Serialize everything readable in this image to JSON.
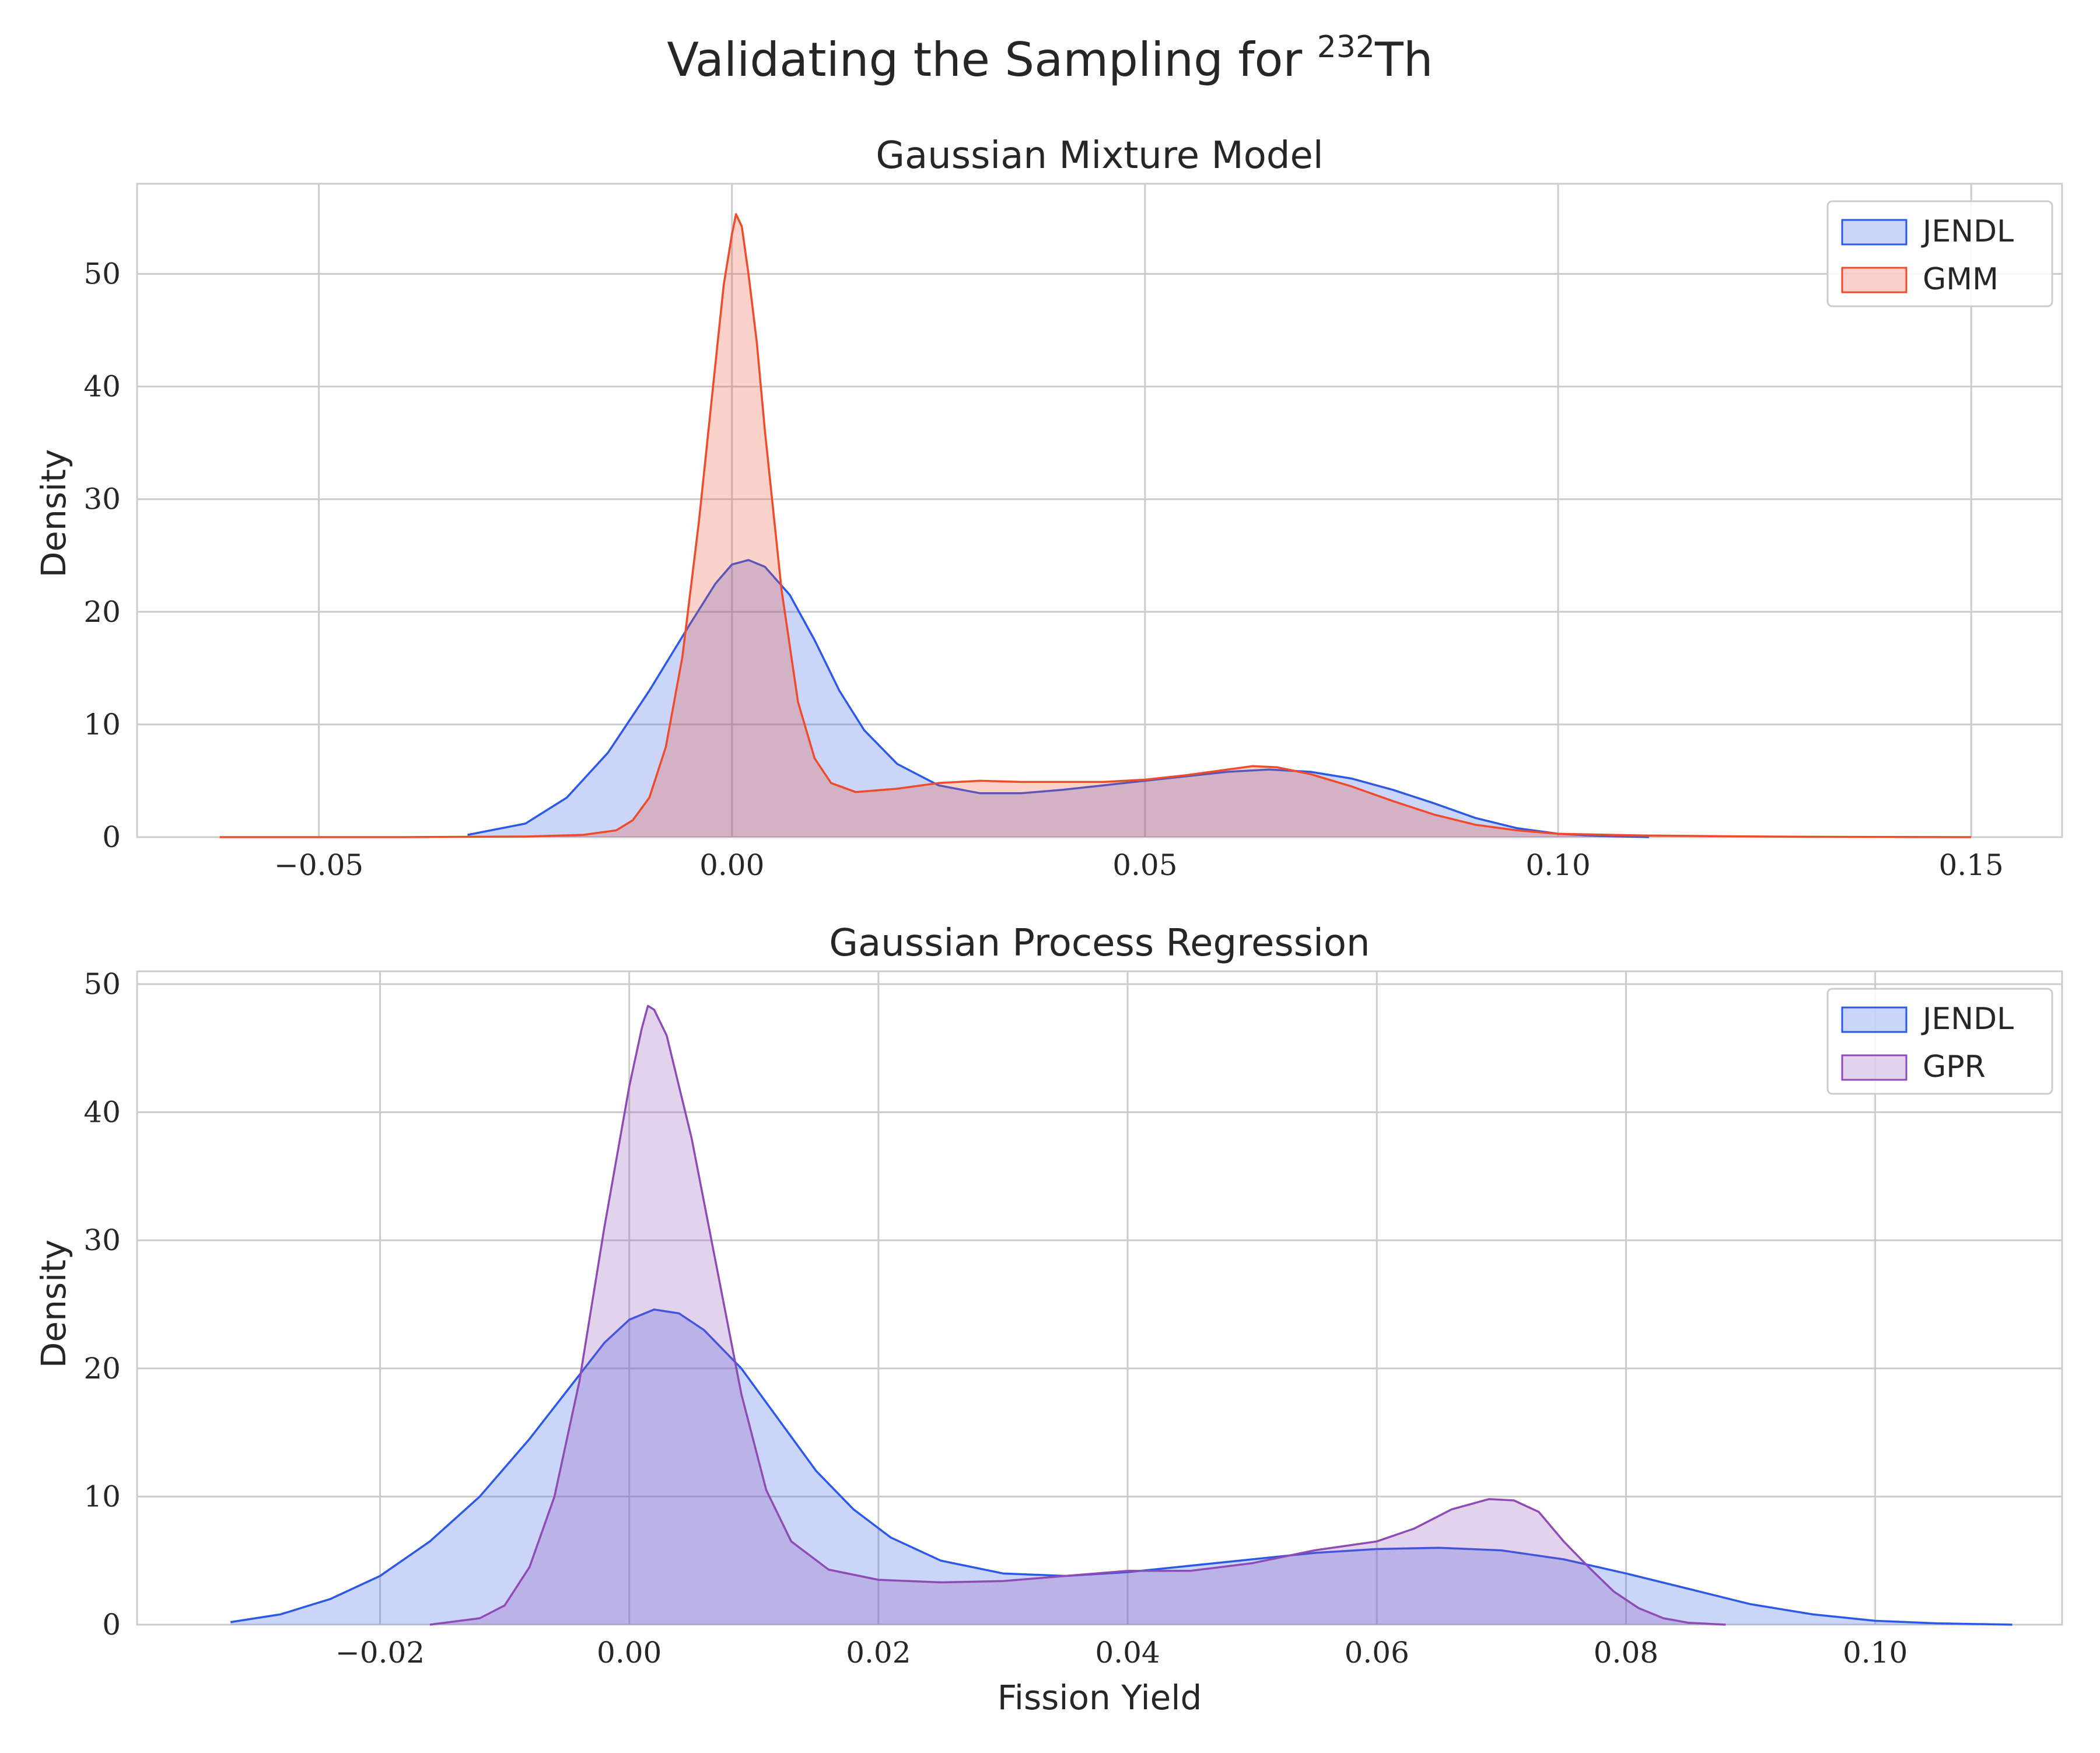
{
  "figure": {
    "title": "Validating the Sampling for ",
    "title_superscript": "232",
    "title_suffix": "Th"
  },
  "chart_data": [
    {
      "type": "area",
      "chart_kind": "kde density",
      "title": "Gaussian Mixture Model",
      "xlabel": "",
      "ylabel": "Density",
      "xlim": [
        -0.072,
        0.161
      ],
      "ylim": [
        0,
        58
      ],
      "xticks": [
        -0.05,
        0.0,
        0.05,
        0.1,
        0.15
      ],
      "xtick_labels": [
        "−0.05",
        "0.00",
        "0.05",
        "0.10",
        "0.15"
      ],
      "yticks": [
        0,
        10,
        20,
        30,
        40,
        50
      ],
      "ytick_labels": [
        "0",
        "10",
        "20",
        "30",
        "40",
        "50"
      ],
      "grid": true,
      "legend_position": "top-right",
      "series": [
        {
          "name": "JENDL",
          "color": "#2a58e8",
          "fill": "#c8d4fa",
          "points": [
            [
              -0.032,
              0.2
            ],
            [
              -0.025,
              1.2
            ],
            [
              -0.02,
              3.5
            ],
            [
              -0.015,
              7.5
            ],
            [
              -0.01,
              13.0
            ],
            [
              -0.005,
              19.0
            ],
            [
              -0.002,
              22.5
            ],
            [
              0.0,
              24.2
            ],
            [
              0.002,
              24.6
            ],
            [
              0.004,
              24.0
            ],
            [
              0.007,
              21.5
            ],
            [
              0.01,
              17.5
            ],
            [
              0.013,
              13.0
            ],
            [
              0.016,
              9.5
            ],
            [
              0.02,
              6.5
            ],
            [
              0.025,
              4.6
            ],
            [
              0.03,
              3.9
            ],
            [
              0.035,
              3.9
            ],
            [
              0.04,
              4.2
            ],
            [
              0.045,
              4.6
            ],
            [
              0.05,
              5.0
            ],
            [
              0.055,
              5.4
            ],
            [
              0.06,
              5.8
            ],
            [
              0.065,
              6.0
            ],
            [
              0.07,
              5.8
            ],
            [
              0.075,
              5.2
            ],
            [
              0.08,
              4.2
            ],
            [
              0.085,
              3.0
            ],
            [
              0.09,
              1.7
            ],
            [
              0.095,
              0.8
            ],
            [
              0.1,
              0.3
            ],
            [
              0.105,
              0.1
            ],
            [
              0.111,
              0.0
            ]
          ]
        },
        {
          "name": "GMM",
          "color": "#f04a2a",
          "fill": "#fac9bd",
          "points": [
            [
              -0.062,
              0.0
            ],
            [
              -0.04,
              0.0
            ],
            [
              -0.025,
              0.05
            ],
            [
              -0.018,
              0.2
            ],
            [
              -0.014,
              0.6
            ],
            [
              -0.012,
              1.5
            ],
            [
              -0.01,
              3.5
            ],
            [
              -0.008,
              8.0
            ],
            [
              -0.006,
              16.0
            ],
            [
              -0.004,
              28.0
            ],
            [
              -0.002,
              42.0
            ],
            [
              -0.001,
              49.0
            ],
            [
              0.0,
              53.5
            ],
            [
              0.0005,
              55.3
            ],
            [
              0.0012,
              54.2
            ],
            [
              0.002,
              50.0
            ],
            [
              0.003,
              44.0
            ],
            [
              0.004,
              36.0
            ],
            [
              0.006,
              22.0
            ],
            [
              0.008,
              12.0
            ],
            [
              0.01,
              7.0
            ],
            [
              0.012,
              4.8
            ],
            [
              0.015,
              4.0
            ],
            [
              0.02,
              4.3
            ],
            [
              0.025,
              4.8
            ],
            [
              0.03,
              5.0
            ],
            [
              0.035,
              4.9
            ],
            [
              0.04,
              4.9
            ],
            [
              0.045,
              4.9
            ],
            [
              0.05,
              5.1
            ],
            [
              0.055,
              5.5
            ],
            [
              0.06,
              6.0
            ],
            [
              0.063,
              6.3
            ],
            [
              0.066,
              6.2
            ],
            [
              0.07,
              5.6
            ],
            [
              0.075,
              4.5
            ],
            [
              0.08,
              3.2
            ],
            [
              0.085,
              2.0
            ],
            [
              0.09,
              1.1
            ],
            [
              0.095,
              0.6
            ],
            [
              0.1,
              0.3
            ],
            [
              0.11,
              0.15
            ],
            [
              0.12,
              0.08
            ],
            [
              0.13,
              0.03
            ],
            [
              0.15,
              0.0
            ]
          ]
        }
      ]
    },
    {
      "type": "area",
      "chart_kind": "kde density",
      "title": "Gaussian Process Regression",
      "xlabel": "Fission Yield",
      "ylabel": "Density",
      "xlim": [
        -0.0395,
        0.115
      ],
      "ylim": [
        0,
        51
      ],
      "xticks": [
        -0.02,
        0.0,
        0.02,
        0.04,
        0.06,
        0.08,
        0.1
      ],
      "xtick_labels": [
        "−0.02",
        "0.00",
        "0.02",
        "0.04",
        "0.06",
        "0.08",
        "0.10"
      ],
      "yticks": [
        0,
        10,
        20,
        30,
        40,
        50
      ],
      "ytick_labels": [
        "0",
        "10",
        "20",
        "30",
        "40",
        "50"
      ],
      "grid": true,
      "legend_position": "top-right",
      "series": [
        {
          "name": "JENDL",
          "color": "#2a58e8",
          "fill": "#c8d4fa",
          "points": [
            [
              -0.032,
              0.2
            ],
            [
              -0.028,
              0.8
            ],
            [
              -0.024,
              2.0
            ],
            [
              -0.02,
              3.8
            ],
            [
              -0.016,
              6.5
            ],
            [
              -0.012,
              10.0
            ],
            [
              -0.008,
              14.5
            ],
            [
              -0.004,
              19.5
            ],
            [
              -0.002,
              22.0
            ],
            [
              0.0,
              23.8
            ],
            [
              0.002,
              24.6
            ],
            [
              0.004,
              24.3
            ],
            [
              0.006,
              23.0
            ],
            [
              0.009,
              20.0
            ],
            [
              0.012,
              16.0
            ],
            [
              0.015,
              12.0
            ],
            [
              0.018,
              9.0
            ],
            [
              0.021,
              6.8
            ],
            [
              0.025,
              5.0
            ],
            [
              0.03,
              4.0
            ],
            [
              0.035,
              3.8
            ],
            [
              0.04,
              4.1
            ],
            [
              0.045,
              4.6
            ],
            [
              0.05,
              5.1
            ],
            [
              0.055,
              5.6
            ],
            [
              0.06,
              5.9
            ],
            [
              0.065,
              6.0
            ],
            [
              0.07,
              5.8
            ],
            [
              0.075,
              5.1
            ],
            [
              0.08,
              4.0
            ],
            [
              0.085,
              2.8
            ],
            [
              0.09,
              1.6
            ],
            [
              0.095,
              0.8
            ],
            [
              0.1,
              0.3
            ],
            [
              0.105,
              0.1
            ],
            [
              0.111,
              0.0
            ]
          ]
        },
        {
          "name": "GPR",
          "color": "#8e4bb5",
          "fill": "#e3d1ec",
          "points": [
            [
              -0.016,
              0.0
            ],
            [
              -0.012,
              0.5
            ],
            [
              -0.01,
              1.5
            ],
            [
              -0.008,
              4.5
            ],
            [
              -0.006,
              10.0
            ],
            [
              -0.004,
              19.0
            ],
            [
              -0.002,
              31.0
            ],
            [
              0.0,
              42.0
            ],
            [
              0.001,
              46.5
            ],
            [
              0.0015,
              48.3
            ],
            [
              0.002,
              48.0
            ],
            [
              0.003,
              46.0
            ],
            [
              0.005,
              38.0
            ],
            [
              0.007,
              28.0
            ],
            [
              0.009,
              18.0
            ],
            [
              0.011,
              10.5
            ],
            [
              0.013,
              6.5
            ],
            [
              0.016,
              4.3
            ],
            [
              0.02,
              3.5
            ],
            [
              0.025,
              3.3
            ],
            [
              0.03,
              3.4
            ],
            [
              0.035,
              3.8
            ],
            [
              0.04,
              4.2
            ],
            [
              0.045,
              4.2
            ],
            [
              0.05,
              4.8
            ],
            [
              0.055,
              5.8
            ],
            [
              0.06,
              6.5
            ],
            [
              0.063,
              7.5
            ],
            [
              0.066,
              9.0
            ],
            [
              0.069,
              9.8
            ],
            [
              0.071,
              9.7
            ],
            [
              0.073,
              8.8
            ],
            [
              0.075,
              6.5
            ],
            [
              0.077,
              4.5
            ],
            [
              0.079,
              2.6
            ],
            [
              0.081,
              1.3
            ],
            [
              0.083,
              0.5
            ],
            [
              0.085,
              0.15
            ],
            [
              0.088,
              0.0
            ]
          ]
        }
      ]
    }
  ]
}
